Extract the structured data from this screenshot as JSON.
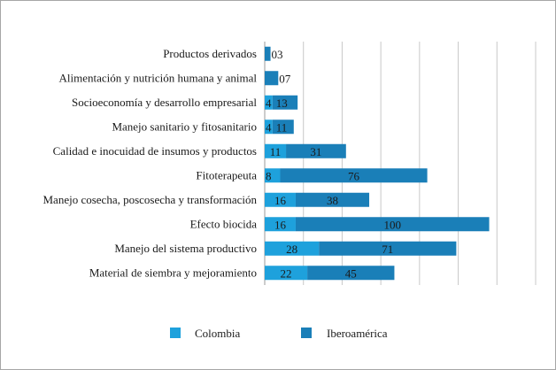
{
  "chart_data": {
    "type": "bar",
    "orientation": "horizontal",
    "stacked": true,
    "categories": [
      "Productos derivados",
      "Alimentación y nutrición humana y animal",
      "Socioeconomía y desarrollo empresarial",
      "Manejo sanitario y fitosanitario",
      "Calidad e inocuidad de insumos y productos",
      "Fitoterapeuta",
      "Manejo cosecha, poscosecha y transformación",
      "Efecto biocida",
      "Manejo del sistema productivo",
      "Material de siembra y mejoramiento"
    ],
    "series": [
      {
        "name": "Colombia",
        "color": "#1ea1dc",
        "values": [
          0,
          0,
          4,
          4,
          11,
          8,
          16,
          16,
          28,
          22
        ],
        "labels": [
          "",
          "",
          "4",
          "4",
          "11",
          "8",
          "16",
          "16",
          "28",
          "22"
        ]
      },
      {
        "name": "Iberoamérica",
        "color": "#1a7fb8",
        "values": [
          3,
          7,
          13,
          11,
          31,
          76,
          38,
          100,
          71,
          45
        ],
        "labels": [
          "03",
          "07",
          "13",
          "11",
          "31",
          "76",
          "38",
          "100",
          "71",
          "45"
        ]
      }
    ],
    "xlim": [
      0,
      140
    ],
    "grid": true,
    "legend_position": "bottom"
  }
}
